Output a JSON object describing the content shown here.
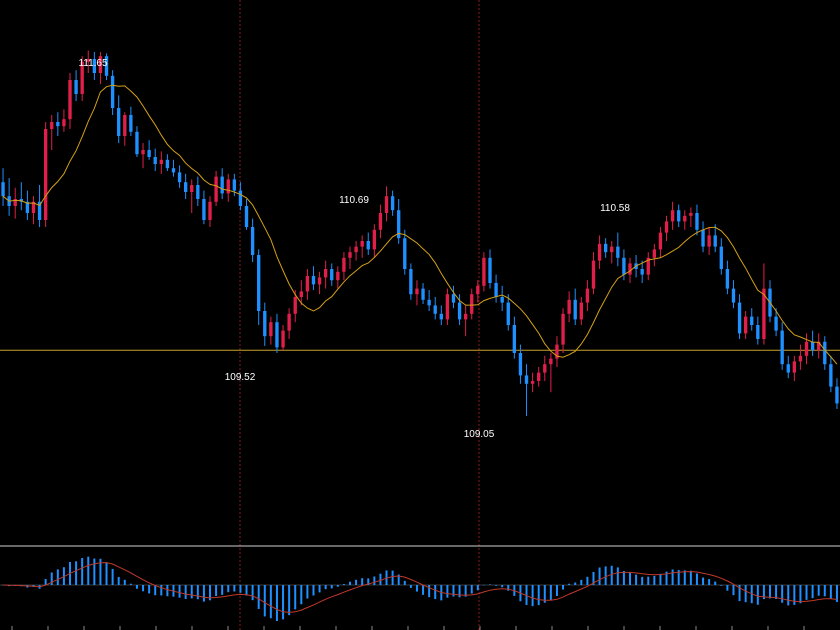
{
  "chart_data": [
    {
      "type": "candlestick",
      "price_labels": {
        "high_1": "111.65",
        "high_2": "110.69",
        "high_3": "110.58",
        "low_1": "109.52",
        "low_2": "109.05"
      },
      "horizontal_line": 109.52,
      "moving_average": "yes",
      "up_color": "#e0204a",
      "down_color": "#1e90ff",
      "ma_color": "#d4a017",
      "ylim": [
        108.2,
        111.95
      ],
      "candles": [
        [
          110.72,
          110.82,
          110.55,
          110.62
        ],
        [
          110.62,
          110.75,
          110.48,
          110.55
        ],
        [
          110.55,
          110.68,
          110.46,
          110.6
        ],
        [
          110.6,
          110.72,
          110.52,
          110.58
        ],
        [
          110.58,
          110.66,
          110.45,
          110.5
        ],
        [
          110.5,
          110.62,
          110.42,
          110.58
        ],
        [
          110.58,
          110.7,
          110.4,
          110.45
        ],
        [
          110.45,
          111.15,
          110.4,
          111.1
        ],
        [
          111.1,
          111.2,
          110.95,
          111.15
        ],
        [
          111.15,
          111.22,
          111.05,
          111.12
        ],
        [
          111.12,
          111.24,
          111.08,
          111.17
        ],
        [
          111.17,
          111.5,
          111.1,
          111.45
        ],
        [
          111.45,
          111.52,
          111.3,
          111.35
        ],
        [
          111.35,
          111.62,
          111.3,
          111.58
        ],
        [
          111.58,
          111.66,
          111.5,
          111.6
        ],
        [
          111.6,
          111.65,
          111.45,
          111.5
        ],
        [
          111.5,
          111.65,
          111.42,
          111.62
        ],
        [
          111.62,
          111.64,
          111.45,
          111.48
        ],
        [
          111.48,
          111.52,
          111.2,
          111.25
        ],
        [
          111.25,
          111.34,
          111.0,
          111.05
        ],
        [
          111.05,
          111.22,
          110.98,
          111.2
        ],
        [
          111.2,
          111.26,
          111.05,
          111.08
        ],
        [
          111.08,
          111.12,
          110.9,
          110.92
        ],
        [
          110.92,
          111.0,
          110.82,
          110.95
        ],
        [
          110.95,
          111.02,
          110.88,
          110.9
        ],
        [
          110.9,
          110.96,
          110.8,
          110.85
        ],
        [
          110.85,
          110.94,
          110.78,
          110.88
        ],
        [
          110.88,
          110.92,
          110.8,
          110.82
        ],
        [
          110.82,
          110.88,
          110.76,
          110.79
        ],
        [
          110.79,
          110.84,
          110.68,
          110.72
        ],
        [
          110.72,
          110.78,
          110.6,
          110.65
        ],
        [
          110.65,
          110.74,
          110.5,
          110.7
        ],
        [
          110.7,
          110.76,
          110.55,
          110.6
        ],
        [
          110.6,
          110.66,
          110.42,
          110.45
        ],
        [
          110.45,
          110.62,
          110.4,
          110.58
        ],
        [
          110.58,
          110.8,
          110.55,
          110.76
        ],
        [
          110.76,
          110.82,
          110.6,
          110.64
        ],
        [
          110.64,
          110.78,
          110.58,
          110.74
        ],
        [
          110.74,
          110.78,
          110.62,
          110.66
        ],
        [
          110.66,
          110.72,
          110.52,
          110.55
        ],
        [
          110.55,
          110.6,
          110.38,
          110.4
        ],
        [
          110.4,
          110.46,
          110.15,
          110.2
        ],
        [
          110.2,
          110.24,
          109.7,
          109.8
        ],
        [
          109.8,
          109.86,
          109.55,
          109.62
        ],
        [
          109.62,
          109.76,
          109.56,
          109.72
        ],
        [
          109.72,
          109.78,
          109.5,
          109.54
        ],
        [
          109.54,
          109.7,
          109.52,
          109.66
        ],
        [
          109.66,
          109.82,
          109.6,
          109.78
        ],
        [
          109.78,
          109.95,
          109.72,
          109.9
        ],
        [
          109.9,
          110.02,
          109.84,
          109.94
        ],
        [
          109.94,
          110.1,
          109.88,
          110.05
        ],
        [
          110.05,
          110.12,
          109.95,
          109.99
        ],
        [
          109.99,
          110.08,
          109.92,
          110.04
        ],
        [
          110.04,
          110.16,
          109.96,
          110.1
        ],
        [
          110.1,
          110.14,
          109.98,
          110.02
        ],
        [
          110.02,
          110.12,
          109.96,
          110.08
        ],
        [
          110.08,
          110.22,
          110.02,
          110.18
        ],
        [
          110.18,
          110.26,
          110.1,
          110.22
        ],
        [
          110.22,
          110.3,
          110.16,
          110.26
        ],
        [
          110.26,
          110.34,
          110.18,
          110.3
        ],
        [
          110.3,
          110.36,
          110.2,
          110.24
        ],
        [
          110.24,
          110.42,
          110.18,
          110.38
        ],
        [
          110.38,
          110.56,
          110.32,
          110.5
        ],
        [
          110.5,
          110.69,
          110.44,
          110.62
        ],
        [
          110.62,
          110.66,
          110.48,
          110.52
        ],
        [
          110.52,
          110.6,
          110.28,
          110.32
        ],
        [
          110.32,
          110.38,
          110.06,
          110.1
        ],
        [
          110.1,
          110.14,
          109.88,
          109.92
        ],
        [
          109.92,
          110.02,
          109.84,
          109.96
        ],
        [
          109.96,
          110.0,
          109.85,
          109.88
        ],
        [
          109.88,
          109.95,
          109.8,
          109.84
        ],
        [
          109.84,
          109.9,
          109.74,
          109.78
        ],
        [
          109.78,
          109.84,
          109.7,
          109.74
        ],
        [
          109.74,
          109.96,
          109.7,
          109.92
        ],
        [
          109.92,
          109.98,
          109.82,
          109.86
        ],
        [
          109.86,
          109.92,
          109.7,
          109.74
        ],
        [
          109.74,
          109.84,
          109.62,
          109.78
        ],
        [
          109.78,
          109.96,
          109.74,
          109.92
        ],
        [
          109.92,
          110.02,
          109.86,
          109.98
        ],
        [
          109.98,
          110.22,
          109.94,
          110.18
        ],
        [
          110.18,
          110.24,
          109.96,
          110.0
        ],
        [
          110.0,
          110.06,
          109.86,
          109.9
        ],
        [
          109.9,
          109.98,
          109.8,
          109.86
        ],
        [
          109.86,
          109.92,
          109.66,
          109.7
        ],
        [
          109.7,
          109.76,
          109.46,
          109.5
        ],
        [
          109.5,
          109.56,
          109.28,
          109.34
        ],
        [
          109.34,
          109.42,
          109.05,
          109.28
        ],
        [
          109.28,
          109.36,
          109.22,
          109.3
        ],
        [
          109.3,
          109.4,
          109.26,
          109.36
        ],
        [
          109.36,
          109.48,
          109.3,
          109.42
        ],
        [
          109.42,
          109.5,
          109.22,
          109.46
        ],
        [
          109.46,
          109.62,
          109.4,
          109.56
        ],
        [
          109.56,
          109.82,
          109.5,
          109.78
        ],
        [
          109.78,
          109.94,
          109.72,
          109.88
        ],
        [
          109.88,
          109.96,
          109.7,
          109.74
        ],
        [
          109.74,
          109.9,
          109.7,
          109.86
        ],
        [
          109.86,
          110.02,
          109.8,
          109.96
        ],
        [
          109.96,
          110.22,
          109.92,
          110.16
        ],
        [
          110.16,
          110.34,
          110.1,
          110.28
        ],
        [
          110.28,
          110.32,
          110.18,
          110.22
        ],
        [
          110.22,
          110.3,
          110.14,
          110.26
        ],
        [
          110.26,
          110.36,
          110.12,
          110.18
        ],
        [
          110.18,
          110.24,
          110.02,
          110.06
        ],
        [
          110.06,
          110.18,
          110.0,
          110.14
        ],
        [
          110.14,
          110.2,
          110.04,
          110.1
        ],
        [
          110.1,
          110.16,
          110.0,
          110.06
        ],
        [
          110.06,
          110.22,
          110.02,
          110.18
        ],
        [
          110.18,
          110.28,
          110.12,
          110.24
        ],
        [
          110.24,
          110.4,
          110.18,
          110.36
        ],
        [
          110.36,
          110.48,
          110.3,
          110.44
        ],
        [
          110.44,
          110.58,
          110.38,
          110.52
        ],
        [
          110.52,
          110.56,
          110.4,
          110.44
        ],
        [
          110.44,
          110.52,
          110.38,
          110.48
        ],
        [
          110.48,
          110.54,
          110.4,
          110.5
        ],
        [
          110.5,
          110.56,
          110.34,
          110.38
        ],
        [
          110.38,
          110.44,
          110.22,
          110.26
        ],
        [
          110.26,
          110.4,
          110.2,
          110.34
        ],
        [
          110.34,
          110.42,
          110.22,
          110.26
        ],
        [
          110.26,
          110.32,
          110.06,
          110.1
        ],
        [
          110.1,
          110.16,
          109.92,
          109.96
        ],
        [
          109.96,
          110.02,
          109.82,
          109.86
        ],
        [
          109.86,
          109.92,
          109.6,
          109.64
        ],
        [
          109.64,
          109.8,
          109.6,
          109.76
        ],
        [
          109.76,
          109.82,
          109.66,
          109.7
        ],
        [
          109.7,
          109.76,
          109.56,
          109.6
        ],
        [
          109.6,
          110.14,
          109.56,
          109.96
        ],
        [
          109.96,
          110.02,
          109.72,
          109.76
        ],
        [
          109.76,
          109.82,
          109.62,
          109.66
        ],
        [
          109.66,
          109.72,
          109.38,
          109.42
        ],
        [
          109.42,
          109.48,
          109.32,
          109.36
        ],
        [
          109.36,
          109.48,
          109.3,
          109.44
        ],
        [
          109.44,
          109.56,
          109.38,
          109.48
        ],
        [
          109.48,
          109.64,
          109.42,
          109.58
        ],
        [
          109.58,
          109.66,
          109.48,
          109.52
        ],
        [
          109.52,
          109.64,
          109.46,
          109.58
        ],
        [
          109.58,
          109.62,
          109.38,
          109.42
        ],
        [
          109.42,
          109.48,
          109.22,
          109.26
        ],
        [
          109.26,
          109.32,
          109.1,
          109.14
        ]
      ]
    },
    {
      "type": "bar",
      "histogram_color": "#1e90ff",
      "signal_color": "#c0392b"
    }
  ]
}
